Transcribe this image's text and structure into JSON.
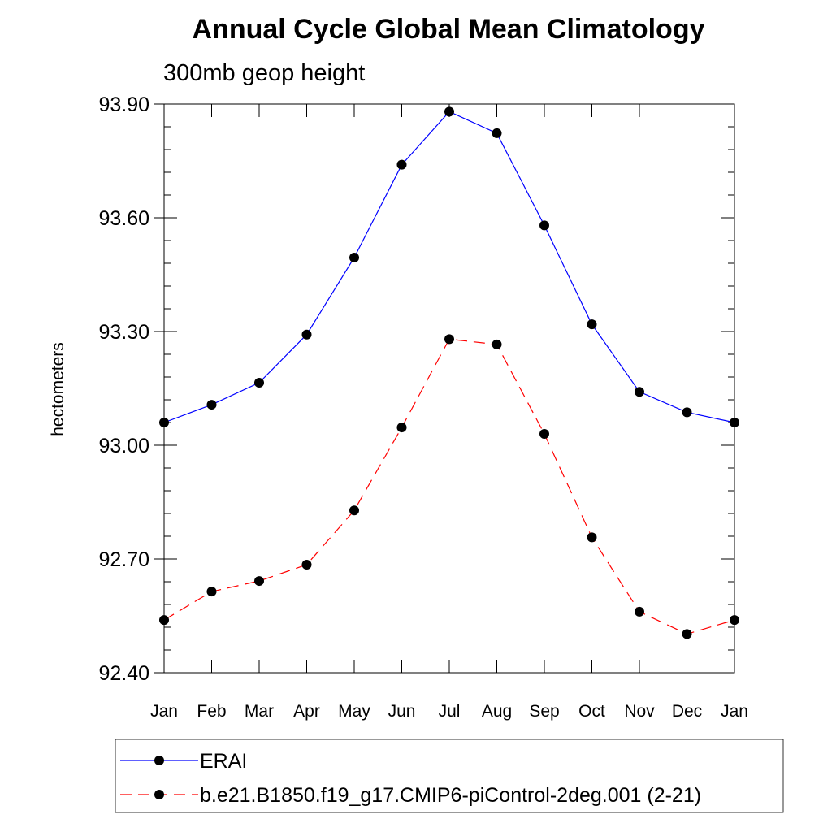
{
  "chart_data": {
    "type": "line",
    "title": "Annual Cycle Global Mean Climatology",
    "subtitle": "300mb geop height",
    "ylabel": "hectometers",
    "xlabel": "",
    "categories": [
      "Jan",
      "Feb",
      "Mar",
      "Apr",
      "May",
      "Jun",
      "Jul",
      "Aug",
      "Sep",
      "Oct",
      "Nov",
      "Dec",
      "Jan"
    ],
    "ylim": [
      92.4,
      93.9
    ],
    "yticks": [
      "92.40",
      "92.70",
      "93.00",
      "93.30",
      "93.60",
      "93.90"
    ],
    "grid": false,
    "legend_position": "bottom",
    "series": [
      {
        "name": "ERAI",
        "color": "#0000ff",
        "line_style": "solid",
        "values": [
          93.06,
          93.107,
          93.165,
          93.292,
          93.495,
          93.74,
          93.88,
          93.823,
          93.58,
          93.319,
          93.141,
          93.087,
          93.06
        ]
      },
      {
        "name": "b.e21.B1850.f19_g17.CMIP6-piControl-2deg.001 (2-21)",
        "color": "#ff0000",
        "line_style": "dashed",
        "values": [
          92.539,
          92.614,
          92.642,
          92.685,
          92.828,
          93.047,
          93.28,
          93.266,
          93.03,
          92.757,
          92.561,
          92.502,
          92.539
        ]
      }
    ]
  }
}
